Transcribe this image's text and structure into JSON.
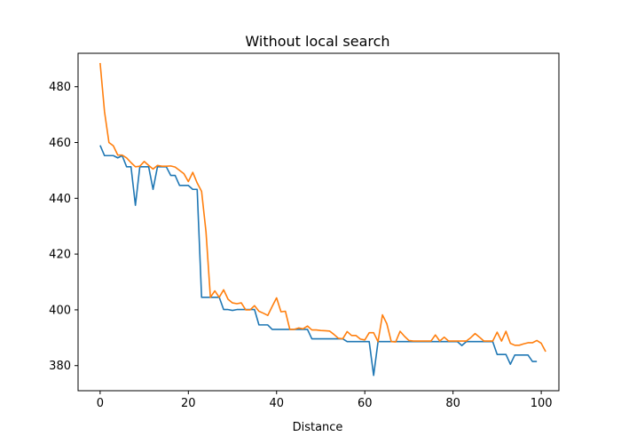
{
  "chart_data": {
    "type": "line",
    "title": "Without local search",
    "xlabel": "Distance",
    "ylabel": "",
    "xlim": [
      -5,
      104
    ],
    "ylim": [
      371,
      492
    ],
    "xticks": [
      0,
      20,
      40,
      60,
      80,
      100
    ],
    "yticks": [
      380,
      400,
      420,
      440,
      460,
      480
    ],
    "grid": false,
    "legend": "none",
    "colors": [
      "#1f77b4",
      "#ff7f0e"
    ],
    "series": [
      {
        "values": [
          459,
          455.3,
          455.3,
          455.3,
          454.5,
          455.3,
          451.3,
          451.3,
          437.5,
          451.3,
          451.3,
          451.3,
          443.2,
          451.3,
          451.3,
          451.3,
          448.2,
          448.2,
          444.6,
          444.6,
          444.6,
          443.2,
          443.2,
          404.5,
          404.5,
          404.5,
          404.5,
          404.5,
          400.1,
          400.1,
          399.8,
          400.1,
          400.1,
          400.1,
          400.1,
          400.1,
          394.6,
          394.6,
          394.6,
          393.0,
          393.0,
          393.0,
          393.0,
          393.0,
          393.0,
          393.0,
          393.0,
          393.0,
          389.6,
          389.6,
          389.6,
          389.6,
          389.6,
          389.6,
          389.6,
          389.6,
          388.6,
          388.6,
          388.6,
          388.6,
          388.6,
          388.6,
          376.5,
          388.6,
          388.6,
          388.6,
          388.6,
          388.6,
          388.6,
          388.6,
          388.6,
          388.6,
          388.6,
          388.6,
          388.6,
          388.6,
          388.6,
          388.6,
          388.6,
          388.6,
          388.6,
          388.6,
          387.2,
          388.6,
          388.6,
          388.6,
          388.6,
          388.6,
          388.6,
          388.6,
          384.0,
          384.0,
          384.0,
          380.5,
          383.8,
          383.8,
          383.8,
          383.8,
          381.5,
          381.5
        ]
      },
      {
        "values": [
          488.5,
          471,
          460,
          458.8,
          455.5,
          455.5,
          454.5,
          452.8,
          451.3,
          451.5,
          453.2,
          451.8,
          450.5,
          451.8,
          451.5,
          451.5,
          451.6,
          451.2,
          450.0,
          448.8,
          446.0,
          449.3,
          445.5,
          442.5,
          428.0,
          404.5,
          406.8,
          404.5,
          407.2,
          403.8,
          402.5,
          402.2,
          402.5,
          400.0,
          400.0,
          401.5,
          399.5,
          398.8,
          398.0,
          401.2,
          404.3,
          399.3,
          399.5,
          393.0,
          393.0,
          393.5,
          393.2,
          394.2,
          392.8,
          392.8,
          392.6,
          392.5,
          392.4,
          391.2,
          389.8,
          389.6,
          392.2,
          390.8,
          390.8,
          389.5,
          389.2,
          391.8,
          391.8,
          388.6,
          398.2,
          395.0,
          388.6,
          388.5,
          392.3,
          390.5,
          389.0,
          388.8,
          388.8,
          388.8,
          388.8,
          388.8,
          391.0,
          388.8,
          390.2,
          388.8,
          388.8,
          388.8,
          388.8,
          388.8,
          390.0,
          391.5,
          390.2,
          388.8,
          388.8,
          388.8,
          392.0,
          388.8,
          392.3,
          388.0,
          387.3,
          387.3,
          387.8,
          388.2,
          388.2,
          389.0,
          388.0,
          385.0
        ]
      }
    ]
  }
}
